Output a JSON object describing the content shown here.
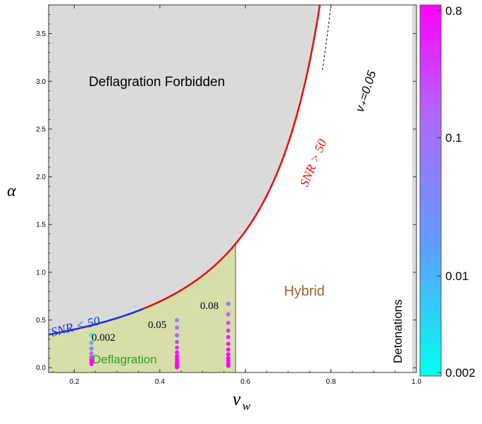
{
  "chart_data": {
    "type": "scatter",
    "xlabel": "v",
    "xlabel_sub": "w",
    "ylabel": "α",
    "xlim": [
      0.14,
      1.0
    ],
    "ylim": [
      -0.05,
      3.8
    ],
    "x_ticks": [
      "0.2",
      "0.4",
      "0.6",
      "0.8",
      "1.0"
    ],
    "y_ticks": [
      "0.0",
      "0.5",
      "1.0",
      "1.5",
      "2.0",
      "2.5",
      "3.0",
      "3.5"
    ],
    "colorbar": {
      "ticks": [
        "0.8",
        "0.1",
        "0.01",
        "0.002"
      ],
      "log_scale": true,
      "range": [
        0.002,
        0.8
      ],
      "colors": [
        "#00ffee",
        "#ff00ff"
      ]
    },
    "regions": [
      {
        "name": "Deflagration Forbidden",
        "color": "#dadada"
      },
      {
        "name": "Hybrid",
        "color": "#fde3c4",
        "text_color": "#a0622d"
      },
      {
        "name": "Detonations",
        "color": "#dadada"
      },
      {
        "name": "Deflagration",
        "color": "#d8deaa",
        "text_color": "#2e9a2e"
      }
    ],
    "boundary_vw": 0.577,
    "curves": {
      "snr_low": {
        "label": "SNR < 50",
        "color": "#1b2fe0",
        "x_range": [
          0.14,
          0.36
        ]
      },
      "snr_high": {
        "label": "SNR > 50",
        "color": "#e31313",
        "x_range": [
          0.36,
          0.87
        ]
      },
      "vplus": {
        "label": "v₊=0.05",
        "color": "#000000"
      }
    },
    "point_labels": [
      "0.002",
      "0.05",
      "0.08"
    ],
    "series": [
      {
        "vw": 0.24,
        "points": [
          {
            "alpha": 0.34,
            "c": 0.002
          },
          {
            "alpha": 0.26,
            "c": 0.01
          },
          {
            "alpha": 0.2,
            "c": 0.03
          },
          {
            "alpha": 0.15,
            "c": 0.08
          },
          {
            "alpha": 0.11,
            "c": 0.2
          },
          {
            "alpha": 0.08,
            "c": 0.5
          },
          {
            "alpha": 0.06,
            "c": 0.8
          },
          {
            "alpha": 0.04,
            "c": 0.8
          }
        ]
      },
      {
        "vw": 0.44,
        "points": [
          {
            "alpha": 0.5,
            "c": 0.05
          },
          {
            "alpha": 0.42,
            "c": 0.08
          },
          {
            "alpha": 0.34,
            "c": 0.15
          },
          {
            "alpha": 0.27,
            "c": 0.25
          },
          {
            "alpha": 0.21,
            "c": 0.4
          },
          {
            "alpha": 0.16,
            "c": 0.6
          },
          {
            "alpha": 0.12,
            "c": 0.8
          },
          {
            "alpha": 0.09,
            "c": 0.8
          },
          {
            "alpha": 0.06,
            "c": 0.8
          },
          {
            "alpha": 0.04,
            "c": 0.8
          },
          {
            "alpha": 0.02,
            "c": 0.8
          },
          {
            "alpha": 0.005,
            "c": 0.8
          }
        ]
      },
      {
        "vw": 0.56,
        "points": [
          {
            "alpha": 0.67,
            "c": 0.08
          },
          {
            "alpha": 0.56,
            "c": 0.15
          },
          {
            "alpha": 0.47,
            "c": 0.25
          },
          {
            "alpha": 0.39,
            "c": 0.35
          },
          {
            "alpha": 0.32,
            "c": 0.5
          },
          {
            "alpha": 0.25,
            "c": 0.6
          },
          {
            "alpha": 0.19,
            "c": 0.7
          },
          {
            "alpha": 0.14,
            "c": 0.8
          },
          {
            "alpha": 0.1,
            "c": 0.8
          },
          {
            "alpha": 0.07,
            "c": 0.8
          },
          {
            "alpha": 0.04,
            "c": 0.8
          },
          {
            "alpha": 0.02,
            "c": 0.8
          }
        ]
      }
    ]
  }
}
